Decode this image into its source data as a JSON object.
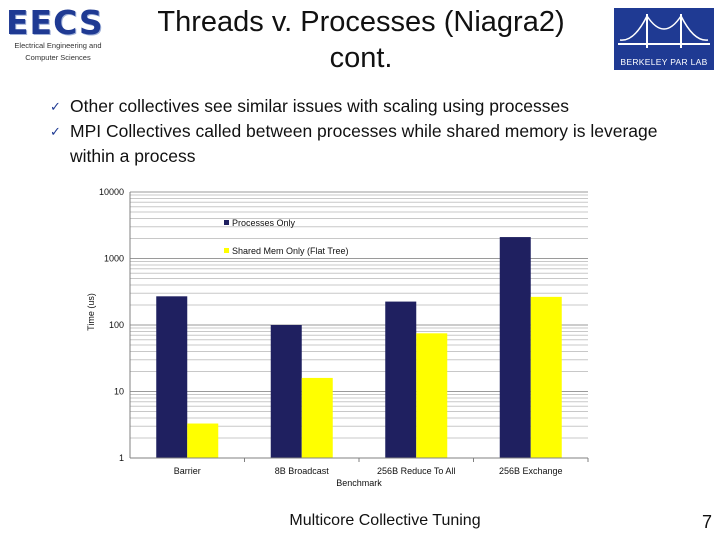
{
  "header": {
    "logo_text": "EECS",
    "logo_subtext": "Electrical Engineering and Computer Sciences",
    "title_line1": "Threads v. Processes (Niagra2)",
    "title_line2": "cont.",
    "lab_logo_text": "BERKELEY PAR LAB"
  },
  "bullets": [
    "Other collectives see similar issues with scaling using processes",
    "MPI Collectives called between processes while shared memory is leverage within a process"
  ],
  "colors": {
    "processes": "#1f2060",
    "shared_mem": "#ffff00",
    "accent": "#1f3a93"
  },
  "chart_data": {
    "type": "bar",
    "categories": [
      "Barrier",
      "8B Broadcast",
      "256B Reduce To All",
      "256B Exchange"
    ],
    "series": [
      {
        "name": "Processes Only",
        "values": [
          270,
          100,
          225,
          2100
        ]
      },
      {
        "name": "Shared Mem Only (Flat Tree)",
        "values": [
          3.3,
          16,
          75,
          265
        ]
      }
    ],
    "title": "",
    "xlabel": "Benchmark",
    "ylabel": "Time (us)",
    "ylim": [
      1,
      10000
    ],
    "yscale": "log",
    "yticks": [
      "1",
      "10",
      "100",
      "1000",
      "10000"
    ],
    "legend": "top-center",
    "grid": true
  },
  "footer": {
    "text": "Multicore Collective Tuning",
    "page": "7"
  }
}
